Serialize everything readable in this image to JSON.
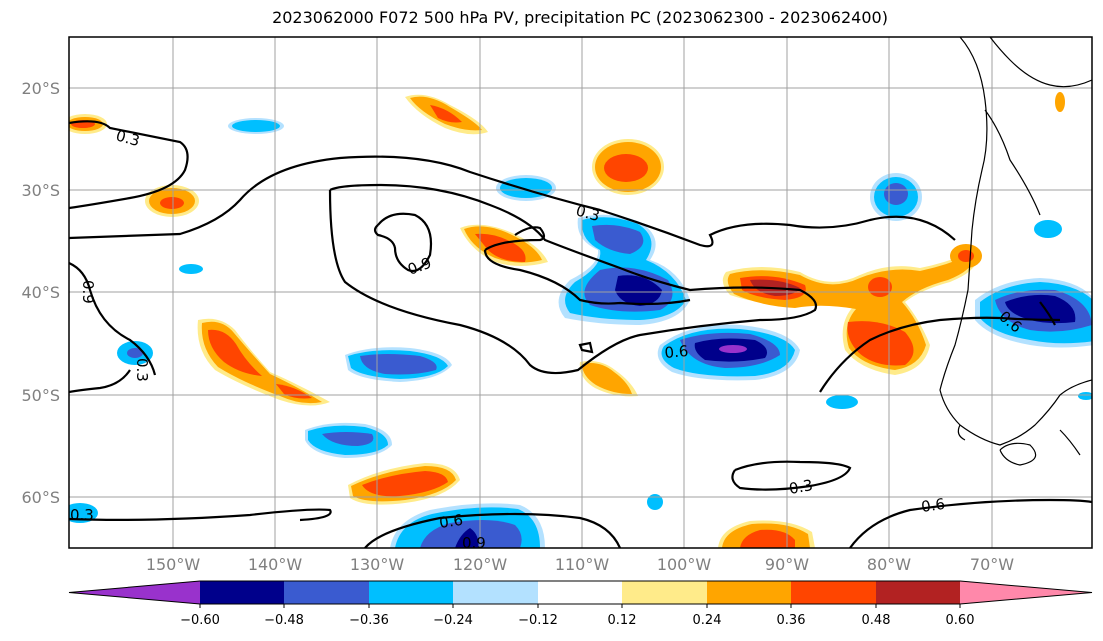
{
  "title": "2023062000 F072 500 hPa PV, precipitation PC (2023062300 - 2023062400)",
  "lat_labels": [
    "20°S",
    "30°S",
    "40°S",
    "50°S",
    "60°S"
  ],
  "lon_labels": [
    "150°W",
    "140°W",
    "130°W",
    "120°W",
    "110°W",
    "100°W",
    "90°W",
    "80°W",
    "70°W"
  ],
  "colorbar": {
    "colors": [
      "#9932cc",
      "#00008b",
      "#3a5bd0",
      "#00bfff",
      "#b3e1ff",
      "#ffffff",
      "#ffeb8a",
      "#ffa500",
      "#ff4500",
      "#b22222",
      "#ff88aa"
    ],
    "tick_labels": [
      "−0.60",
      "−0.48",
      "−0.36",
      "−0.24",
      "−0.12",
      "0.12",
      "0.24",
      "0.36",
      "0.48",
      "0.60"
    ]
  },
  "contour_labels": [
    "0.3",
    "0.3",
    "0.9",
    "0.9",
    "0.6",
    "0.6",
    "0.3",
    "0.3",
    "0.6",
    "0.9",
    "0.6",
    "0.3"
  ]
}
